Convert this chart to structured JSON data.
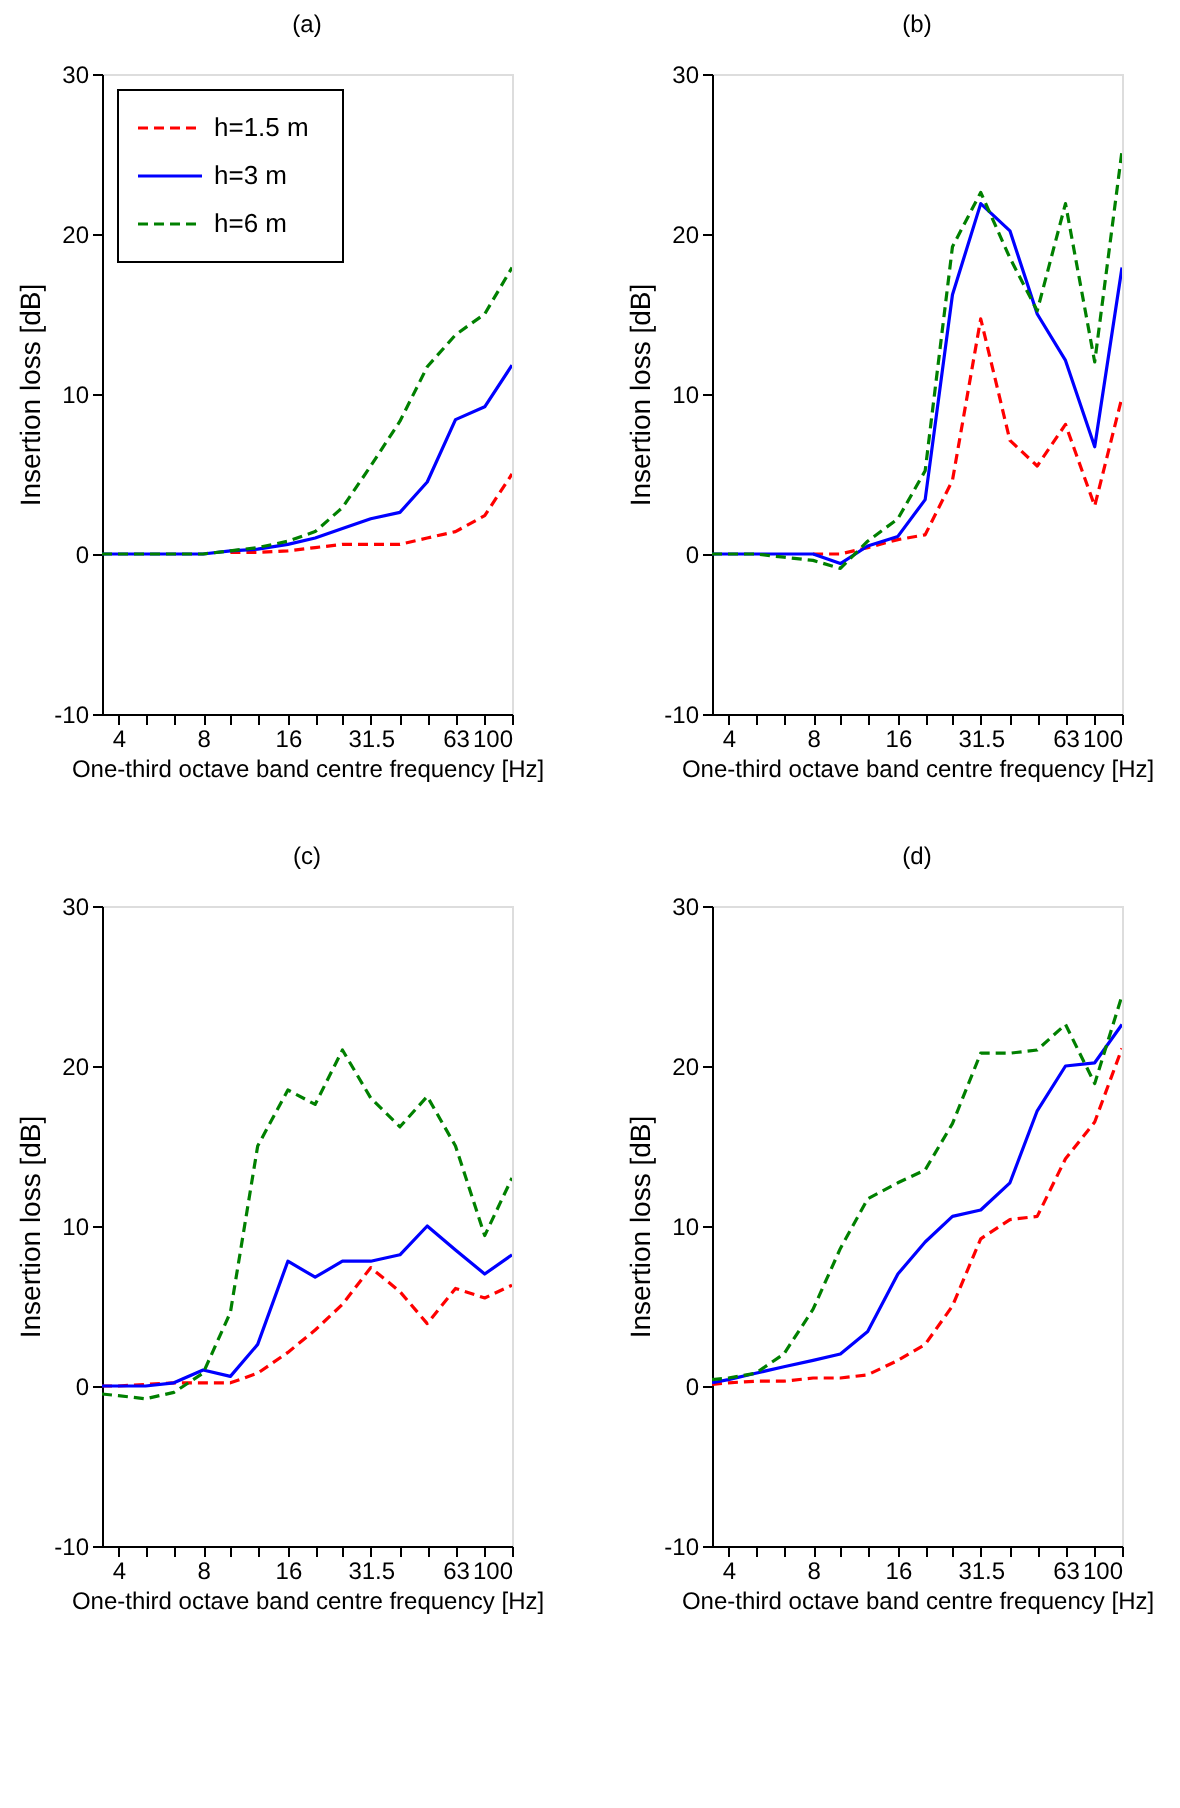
{
  "chart_data": [
    {
      "type": "line",
      "title": "(a)",
      "xlabel": "One-third octave band centre frequency [Hz]",
      "ylabel": "Insertion loss [dB]",
      "log": "x",
      "grid": false,
      "legend": "top left",
      "marker": "none",
      "x": [
        3.5,
        4,
        5,
        6.3,
        8,
        10,
        12.5,
        16,
        20,
        25,
        31.5,
        40,
        50,
        63,
        80,
        100
      ],
      "xlim": [
        3.5,
        100
      ],
      "xticks": [
        4,
        {
          "value": 5,
          "label": null
        },
        {
          "value": 6.3,
          "label": null
        },
        8,
        {
          "value": 10,
          "label": null
        },
        {
          "value": 12.5,
          "label": null
        },
        16,
        {
          "value": 20,
          "label": null
        },
        {
          "value": 25,
          "label": null
        },
        31.5,
        {
          "value": 40,
          "label": null
        },
        {
          "value": 50,
          "label": null
        },
        63,
        {
          "value": 80,
          "label": null
        },
        100
      ],
      "ylim": [
        -10,
        30
      ],
      "yticks": [
        -10,
        0,
        10,
        20,
        30
      ],
      "series": [
        {
          "name": "h=1.5 m",
          "color": "#ff0000",
          "line_style": "dashed",
          "values": [
            null,
            null,
            null,
            null,
            null,
            0.1,
            0.1,
            0.2,
            0.4,
            0.6,
            0.6,
            0.6,
            1.0,
            1.4,
            2.4,
            5.0
          ]
        },
        {
          "name": "h=3 m",
          "color": "#0000ff",
          "line_style": "solid",
          "values": [
            0,
            0,
            0,
            0,
            0,
            0.2,
            0.3,
            0.6,
            1.0,
            1.6,
            2.2,
            2.6,
            4.5,
            8.4,
            9.2,
            11.8
          ]
        },
        {
          "name": "h=6 m",
          "color": "#008000",
          "line_style": "dashed",
          "values": [
            0,
            0,
            0,
            0,
            0,
            0.2,
            0.4,
            0.8,
            1.4,
            2.9,
            5.5,
            8.3,
            11.7,
            13.7,
            15.0,
            17.9
          ]
        }
      ]
    },
    {
      "type": "line",
      "title": "(b)",
      "xlabel": "One-third octave band centre frequency [Hz]",
      "ylabel": "Insertion loss [dB]",
      "log": "x",
      "grid": false,
      "marker": "none",
      "x": [
        3.5,
        4,
        5,
        6.3,
        8,
        10,
        12.5,
        16,
        20,
        25,
        31.5,
        40,
        50,
        63,
        80,
        100
      ],
      "xlim": [
        3.5,
        100
      ],
      "xticks": [
        4,
        {
          "value": 5,
          "label": null
        },
        {
          "value": 6.3,
          "label": null
        },
        8,
        {
          "value": 10,
          "label": null
        },
        {
          "value": 12.5,
          "label": null
        },
        16,
        {
          "value": 20,
          "label": null
        },
        {
          "value": 25,
          "label": null
        },
        31.5,
        {
          "value": 40,
          "label": null
        },
        {
          "value": 50,
          "label": null
        },
        63,
        {
          "value": 80,
          "label": null
        },
        100
      ],
      "ylim": [
        -10,
        30
      ],
      "yticks": [
        -10,
        0,
        10,
        20,
        30
      ],
      "series": [
        {
          "color": "#ff0000",
          "line_style": "dashed",
          "values": [
            null,
            null,
            null,
            null,
            0,
            0,
            0.4,
            0.9,
            1.2,
            4.6,
            14.7,
            7.1,
            5.5,
            8.1,
            3.0,
            9.8
          ]
        },
        {
          "color": "#0000ff",
          "line_style": "solid",
          "values": [
            0,
            0,
            0,
            0,
            0,
            -0.6,
            0.5,
            1.1,
            3.4,
            16.2,
            21.9,
            20.2,
            15.0,
            12.1,
            6.7,
            17.9
          ]
        },
        {
          "color": "#008000",
          "line_style": "dashed",
          "values": [
            0,
            0,
            0,
            -0.2,
            -0.4,
            -0.9,
            0.8,
            2.2,
            5.2,
            19.2,
            22.6,
            18.5,
            15.2,
            21.9,
            12.0,
            25.2
          ]
        }
      ]
    },
    {
      "type": "line",
      "title": "(c)",
      "xlabel": "One-third octave band centre frequency [Hz]",
      "ylabel": "Insertion loss [dB]",
      "log": "x",
      "grid": false,
      "marker": "none",
      "x": [
        3.5,
        4,
        5,
        6.3,
        8,
        10,
        12.5,
        16,
        20,
        25,
        31.5,
        40,
        50,
        63,
        80,
        100
      ],
      "xlim": [
        3.5,
        100
      ],
      "xticks": [
        4,
        {
          "value": 5,
          "label": null
        },
        {
          "value": 6.3,
          "label": null
        },
        8,
        {
          "value": 10,
          "label": null
        },
        {
          "value": 12.5,
          "label": null
        },
        16,
        {
          "value": 20,
          "label": null
        },
        {
          "value": 25,
          "label": null
        },
        31.5,
        {
          "value": 40,
          "label": null
        },
        {
          "value": 50,
          "label": null
        },
        63,
        {
          "value": 80,
          "label": null
        },
        100
      ],
      "ylim": [
        -10,
        30
      ],
      "yticks": [
        -10,
        0,
        10,
        20,
        30
      ],
      "series": [
        {
          "color": "#ff0000",
          "line_style": "dashed",
          "values": [
            0,
            0,
            0.1,
            0.2,
            0.2,
            0.2,
            0.8,
            2.1,
            3.5,
            5.1,
            7.4,
            5.9,
            3.9,
            6.1,
            5.5,
            6.3
          ]
        },
        {
          "color": "#0000ff",
          "line_style": "solid",
          "values": [
            0,
            0,
            0,
            0.2,
            1.0,
            0.6,
            2.6,
            7.8,
            6.8,
            7.8,
            7.8,
            8.2,
            10.0,
            8.5,
            7.0,
            8.2
          ]
        },
        {
          "color": "#008000",
          "line_style": "dashed",
          "values": [
            -0.5,
            -0.6,
            -0.8,
            -0.4,
            0.8,
            4.6,
            15.0,
            18.5,
            17.6,
            21.0,
            18.0,
            16.2,
            18.1,
            15.0,
            9.4,
            13.0
          ]
        }
      ]
    },
    {
      "type": "line",
      "title": "(d)",
      "xlabel": "One-third octave band centre frequency [Hz]",
      "ylabel": "Insertion loss [dB]",
      "log": "x",
      "grid": false,
      "marker": "none",
      "x": [
        3.5,
        4,
        5,
        6.3,
        8,
        10,
        12.5,
        16,
        20,
        25,
        31.5,
        40,
        50,
        63,
        80,
        100
      ],
      "xlim": [
        3.5,
        100
      ],
      "xticks": [
        4,
        {
          "value": 5,
          "label": null
        },
        {
          "value": 6.3,
          "label": null
        },
        8,
        {
          "value": 10,
          "label": null
        },
        {
          "value": 12.5,
          "label": null
        },
        16,
        {
          "value": 20,
          "label": null
        },
        {
          "value": 25,
          "label": null
        },
        31.5,
        {
          "value": 40,
          "label": null
        },
        {
          "value": 50,
          "label": null
        },
        63,
        {
          "value": 80,
          "label": null
        },
        100
      ],
      "ylim": [
        -10,
        30
      ],
      "yticks": [
        -10,
        0,
        10,
        20,
        30
      ],
      "series": [
        {
          "color": "#ff0000",
          "line_style": "dashed",
          "values": [
            0.1,
            0.2,
            0.3,
            0.3,
            0.5,
            0.5,
            0.7,
            1.6,
            2.6,
            5.0,
            9.2,
            10.4,
            10.6,
            14.2,
            16.5,
            21.1
          ]
        },
        {
          "color": "#0000ff",
          "line_style": "solid",
          "values": [
            0.2,
            0.4,
            0.8,
            1.2,
            1.6,
            2.0,
            3.4,
            7.0,
            9.0,
            10.6,
            11.0,
            12.7,
            17.2,
            20.0,
            20.2,
            22.6
          ]
        },
        {
          "color": "#008000",
          "line_style": "dashed",
          "values": [
            0.4,
            0.5,
            0.8,
            2.0,
            4.8,
            8.6,
            11.7,
            12.7,
            13.5,
            16.4,
            20.8,
            20.8,
            21.0,
            22.6,
            18.9,
            24.4
          ]
        }
      ]
    }
  ]
}
